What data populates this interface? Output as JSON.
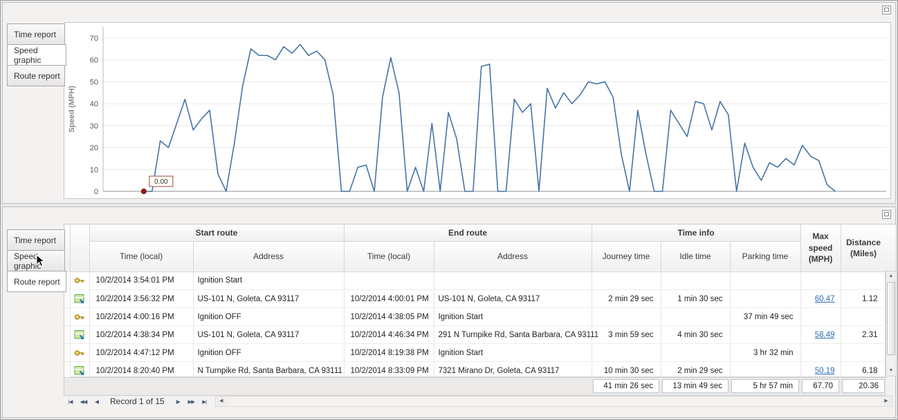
{
  "tabs": [
    {
      "label": "Time report"
    },
    {
      "label": "Speed graphic"
    },
    {
      "label": "Route report"
    }
  ],
  "top_panel": {
    "selected_tab": "Speed graphic"
  },
  "bottom_panel": {
    "selected_tab": "Route report"
  },
  "chart_data": {
    "type": "line",
    "title": "",
    "xlabel": "",
    "ylabel": "Speed (MPH)",
    "ylim": [
      0,
      75
    ],
    "yticks": [
      0,
      10,
      20,
      30,
      40,
      50,
      60,
      70
    ],
    "grid": true,
    "legend": "none",
    "line_color": "#4574a6",
    "marker_color": "#9a1f12",
    "annotation": "0.00",
    "values": [
      0,
      0,
      23,
      20,
      31,
      42,
      28,
      33,
      37,
      8,
      0,
      22,
      48,
      65,
      62,
      62,
      60,
      66,
      63,
      67,
      62,
      64,
      60,
      44,
      0,
      0,
      11,
      12,
      0,
      43,
      61,
      45,
      0,
      11,
      0,
      31,
      0,
      36,
      24,
      0,
      0,
      57,
      58,
      0,
      0,
      42,
      36,
      40,
      0,
      47,
      38,
      45,
      40,
      44,
      50,
      49,
      50,
      43,
      17,
      0,
      37,
      17,
      0,
      0,
      37,
      31,
      25,
      41,
      40,
      28,
      41,
      35,
      0,
      22,
      11,
      5,
      13,
      11,
      15,
      12,
      21,
      16,
      14,
      3,
      0
    ]
  },
  "table": {
    "group_headers": [
      {
        "label": "Start route"
      },
      {
        "label": "End route"
      },
      {
        "label": "Time info"
      }
    ],
    "column_headers": {
      "start_time": "Time (local)",
      "start_address": "Address",
      "end_time": "Time (local)",
      "end_address": "Address",
      "journey_time": "Journey time",
      "idle_time": "Idle time",
      "parking_time": "Parking time",
      "max_speed": "Max speed\n(MPH)",
      "distance": "Distance\n(Miles)"
    },
    "rows": [
      {
        "icon": "key",
        "start_time": "10/2/2014 3:54:01 PM",
        "start_address": "Ignition Start",
        "end_time": "",
        "end_address": "",
        "journey_time": "",
        "idle_time": "",
        "parking_time": "",
        "max_speed": "",
        "max_speed_link": false,
        "distance": ""
      },
      {
        "icon": "route",
        "start_time": "10/2/2014 3:56:32 PM",
        "start_address": "US-101 N, Goleta, CA 93117",
        "end_time": "10/2/2014 4:00:01 PM",
        "end_address": "US-101 N, Goleta, CA 93117",
        "journey_time": "2 min 29 sec",
        "idle_time": "1 min 30 sec",
        "parking_time": "",
        "max_speed": "60.47",
        "max_speed_link": true,
        "distance": "1.12"
      },
      {
        "icon": "key",
        "start_time": "10/2/2014 4:00:16 PM",
        "start_address": "Ignition OFF",
        "end_time": "10/2/2014 4:38:05 PM",
        "end_address": "Ignition Start",
        "journey_time": "",
        "idle_time": "",
        "parking_time": "37 min 49 sec",
        "max_speed": "",
        "max_speed_link": false,
        "distance": ""
      },
      {
        "icon": "route",
        "start_time": "10/2/2014 4:38:34 PM",
        "start_address": "US-101 N, Goleta, CA 93117",
        "end_time": "10/2/2014 4:46:34 PM",
        "end_address": "291 N Turnpike Rd, Santa Barbara, CA 93111",
        "journey_time": "3 min 59 sec",
        "idle_time": "4 min 30 sec",
        "parking_time": "",
        "max_speed": "58.49",
        "max_speed_link": true,
        "distance": "2.31"
      },
      {
        "icon": "key",
        "start_time": "10/2/2014 4:47:12 PM",
        "start_address": "Ignition OFF",
        "end_time": "10/2/2014 8:19:38 PM",
        "end_address": "Ignition Start",
        "journey_time": "",
        "idle_time": "",
        "parking_time": "3 hr 32 min",
        "max_speed": "",
        "max_speed_link": false,
        "distance": ""
      },
      {
        "icon": "route",
        "start_time": "10/2/2014 8:20:40 PM",
        "start_address": "N Turnpike Rd, Santa Barbara, CA 93111",
        "end_time": "10/2/2014 8:33:09 PM",
        "end_address": "7321 Mirano Dr, Goleta, CA 93117",
        "journey_time": "10 min 30 sec",
        "idle_time": "2 min 29 sec",
        "parking_time": "",
        "max_speed": "50.19",
        "max_speed_link": true,
        "distance": "6.18"
      }
    ],
    "summary": {
      "journey_time": "41 min 26 sec",
      "idle_time": "13 min 49 sec",
      "parking_time": "5 hr 57 min",
      "max_speed": "67.70",
      "distance": "20.36"
    }
  },
  "navigator": {
    "first": "|◀",
    "prev_page": "◀◀",
    "prev": "◀",
    "label": "Record 1 of 15",
    "next": "▶",
    "next_page": "▶▶",
    "last": "▶|"
  },
  "icons": {
    "scroll_up": "▲",
    "scroll_down": "▼",
    "scroll_left": "◀",
    "scroll_right": "▶"
  }
}
